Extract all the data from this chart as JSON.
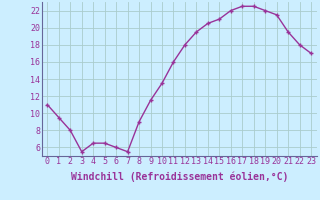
{
  "x": [
    0,
    1,
    2,
    3,
    4,
    5,
    6,
    7,
    8,
    9,
    10,
    11,
    12,
    13,
    14,
    15,
    16,
    17,
    18,
    19,
    20,
    21,
    22,
    23
  ],
  "y": [
    11,
    9.5,
    8,
    5.5,
    6.5,
    6.5,
    6,
    5.5,
    9,
    11.5,
    13.5,
    16,
    18,
    19.5,
    20.5,
    21,
    22,
    22.5,
    22.5,
    22,
    21.5,
    19.5,
    18,
    17
  ],
  "line_color": "#993399",
  "marker": "+",
  "marker_color": "#993399",
  "bg_color": "#cceeff",
  "grid_color": "#aacccc",
  "xlabel": "Windchill (Refroidissement éolien,°C)",
  "xlabel_color": "#993399",
  "tick_color": "#993399",
  "axis_color": "#666699",
  "ylim": [
    5.0,
    23.0
  ],
  "xlim": [
    -0.5,
    23.5
  ],
  "yticks": [
    6,
    8,
    10,
    12,
    14,
    16,
    18,
    20,
    22
  ],
  "xticks": [
    0,
    1,
    2,
    3,
    4,
    5,
    6,
    7,
    8,
    9,
    10,
    11,
    12,
    13,
    14,
    15,
    16,
    17,
    18,
    19,
    20,
    21,
    22,
    23
  ],
  "xtick_labels": [
    "0",
    "1",
    "2",
    "3",
    "4",
    "5",
    "6",
    "7",
    "8",
    "9",
    "10",
    "11",
    "12",
    "13",
    "14",
    "15",
    "16",
    "17",
    "18",
    "19",
    "20",
    "21",
    "22",
    "23"
  ],
  "linewidth": 1.0,
  "markersize": 3.5,
  "tick_fontsize": 6.0,
  "xlabel_fontsize": 7.0
}
